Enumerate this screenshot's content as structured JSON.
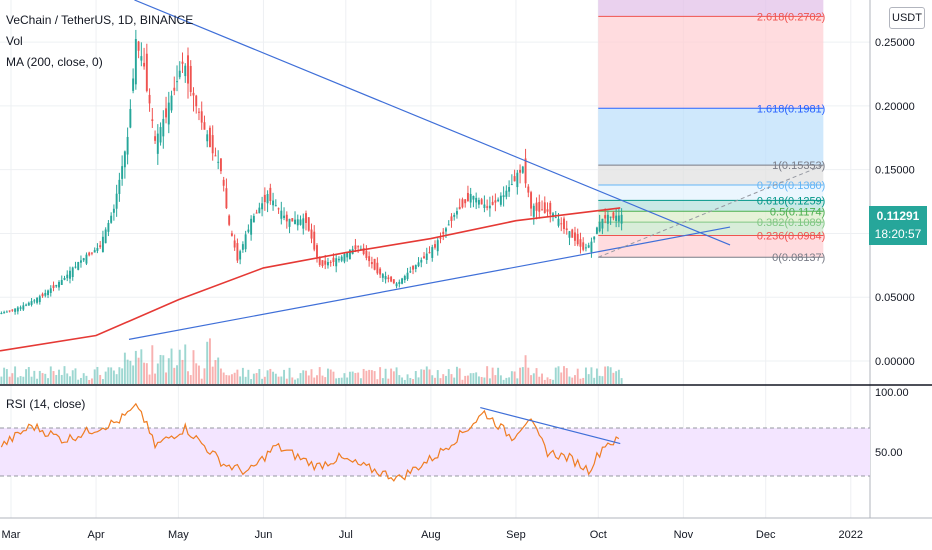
{
  "legend": {
    "symbol": "VeChain / TetherUS, 1D, BINANCE",
    "volume": "Vol",
    "ma": "MA (200, close, 0)",
    "rsi": "RSI (14, close)"
  },
  "toolbar": {
    "currency": "USDT"
  },
  "last_price": {
    "value": "0.11291",
    "countdown": "18:20:57"
  },
  "colors": {
    "up": "#26a69a",
    "down": "#ef5350",
    "ma": "#e53935",
    "trendline": "#3f6fd8",
    "rsi": "#ef7d22",
    "rsi_band": "#f3e5ff"
  },
  "chart_data": {
    "type": "candlestick",
    "price_axis": {
      "ylim": [
        -0.018,
        0.283
      ],
      "ticks": [
        0.25,
        0.2,
        0.15,
        0.1,
        0.05,
        0.0
      ],
      "labels": [
        "0.25000",
        "0.20000",
        "0.15000",
        "0.10000",
        "0.05000",
        "0.00000"
      ]
    },
    "x_axis": {
      "labels": [
        "Mar",
        "Apr",
        "May",
        "Jun",
        "Jul",
        "Aug",
        "Sep",
        "Oct",
        "Nov",
        "Dec",
        "2022"
      ],
      "start": "2021-02-25",
      "end": "2022-01-08"
    },
    "rsi_axis": {
      "ylim": [
        -5,
        105
      ],
      "labels": [
        "100.00",
        "50.00"
      ],
      "band": [
        30,
        70
      ]
    },
    "price_path": [
      [
        "2021-02-25",
        0.037
      ],
      [
        "2021-03-05",
        0.042
      ],
      [
        "2021-03-12",
        0.05
      ],
      [
        "2021-03-20",
        0.063
      ],
      [
        "2021-03-27",
        0.079
      ],
      [
        "2021-04-03",
        0.09
      ],
      [
        "2021-04-08",
        0.12
      ],
      [
        "2021-04-13",
        0.175
      ],
      [
        "2021-04-16",
        0.25
      ],
      [
        "2021-04-19",
        0.23
      ],
      [
        "2021-04-23",
        0.17
      ],
      [
        "2021-04-28",
        0.2
      ],
      [
        "2021-05-03",
        0.235
      ],
      [
        "2021-05-08",
        0.2
      ],
      [
        "2021-05-12",
        0.175
      ],
      [
        "2021-05-17",
        0.15
      ],
      [
        "2021-05-20",
        0.105
      ],
      [
        "2021-05-23",
        0.08
      ],
      [
        "2021-05-28",
        0.11
      ],
      [
        "2021-06-03",
        0.13
      ],
      [
        "2021-06-10",
        0.11
      ],
      [
        "2021-06-17",
        0.11
      ],
      [
        "2021-06-22",
        0.075
      ],
      [
        "2021-06-29",
        0.08
      ],
      [
        "2021-07-06",
        0.09
      ],
      [
        "2021-07-13",
        0.07
      ],
      [
        "2021-07-20",
        0.06
      ],
      [
        "2021-07-27",
        0.075
      ],
      [
        "2021-08-03",
        0.09
      ],
      [
        "2021-08-10",
        0.115
      ],
      [
        "2021-08-16",
        0.13
      ],
      [
        "2021-08-22",
        0.12
      ],
      [
        "2021-08-28",
        0.13
      ],
      [
        "2021-09-04",
        0.152
      ],
      [
        "2021-09-07",
        0.12
      ],
      [
        "2021-09-14",
        0.117
      ],
      [
        "2021-09-21",
        0.1
      ],
      [
        "2021-09-26",
        0.088
      ],
      [
        "2021-09-29",
        0.092
      ],
      [
        "2021-10-01",
        0.105
      ],
      [
        "2021-10-04",
        0.113
      ],
      [
        "2021-10-09",
        0.113
      ]
    ],
    "ma200": [
      [
        "2021-02-25",
        0.008
      ],
      [
        "2021-04-01",
        0.02
      ],
      [
        "2021-05-01",
        0.048
      ],
      [
        "2021-06-01",
        0.073
      ],
      [
        "2021-07-01",
        0.085
      ],
      [
        "2021-08-01",
        0.096
      ],
      [
        "2021-09-01",
        0.11
      ],
      [
        "2021-10-09",
        0.12
      ]
    ],
    "fibonacci": [
      {
        "level": "0",
        "price": 0.08137,
        "label": "0(0.08137)"
      },
      {
        "level": "0.236",
        "price": 0.0984,
        "label": "0.236(0.0984)"
      },
      {
        "level": "0.382",
        "price": 0.1089,
        "label": "0.382(0.1089)"
      },
      {
        "level": "0.5",
        "price": 0.1174,
        "label": "0.5(0.1174)"
      },
      {
        "level": "0.618",
        "price": 0.1259,
        "label": "0.618(0.1259)"
      },
      {
        "level": "0.786",
        "price": 0.138,
        "label": "0.786(0.1380)"
      },
      {
        "level": "1",
        "price": 0.15353,
        "label": "1(0.15353)"
      },
      {
        "level": "1.618",
        "price": 0.1981,
        "label": "1.618(0.1981)"
      },
      {
        "level": "2.618",
        "price": 0.2702,
        "label": "2.618(0.2702)"
      }
    ],
    "trendlines": [
      {
        "name": "descending-resistance",
        "from": [
          "2021-04-15",
          0.283
        ],
        "to": [
          "2021-11-18",
          0.091
        ]
      },
      {
        "name": "ascending-support",
        "from": [
          "2021-04-13",
          0.017
        ],
        "to": [
          "2021-11-18",
          0.105
        ]
      }
    ],
    "rsi_path": [
      [
        "2021-02-25",
        55
      ],
      [
        "2021-03-08",
        72
      ],
      [
        "2021-03-20",
        60
      ],
      [
        "2021-04-01",
        70
      ],
      [
        "2021-04-08",
        75
      ],
      [
        "2021-04-16",
        88
      ],
      [
        "2021-04-22",
        55
      ],
      [
        "2021-05-03",
        70
      ],
      [
        "2021-05-17",
        40
      ],
      [
        "2021-05-26",
        33
      ],
      [
        "2021-06-05",
        55
      ],
      [
        "2021-06-20",
        38
      ],
      [
        "2021-06-28",
        45
      ],
      [
        "2021-07-13",
        33
      ],
      [
        "2021-07-20",
        28
      ],
      [
        "2021-08-03",
        48
      ],
      [
        "2021-08-14",
        70
      ],
      [
        "2021-08-20",
        83
      ],
      [
        "2021-08-30",
        62
      ],
      [
        "2021-09-05",
        78
      ],
      [
        "2021-09-12",
        50
      ],
      [
        "2021-09-20",
        45
      ],
      [
        "2021-09-27",
        35
      ],
      [
        "2021-10-03",
        57
      ],
      [
        "2021-10-09",
        60
      ]
    ],
    "rsi_trendline": {
      "from": [
        "2021-08-19",
        87
      ],
      "to": [
        "2021-10-09",
        57
      ]
    }
  }
}
